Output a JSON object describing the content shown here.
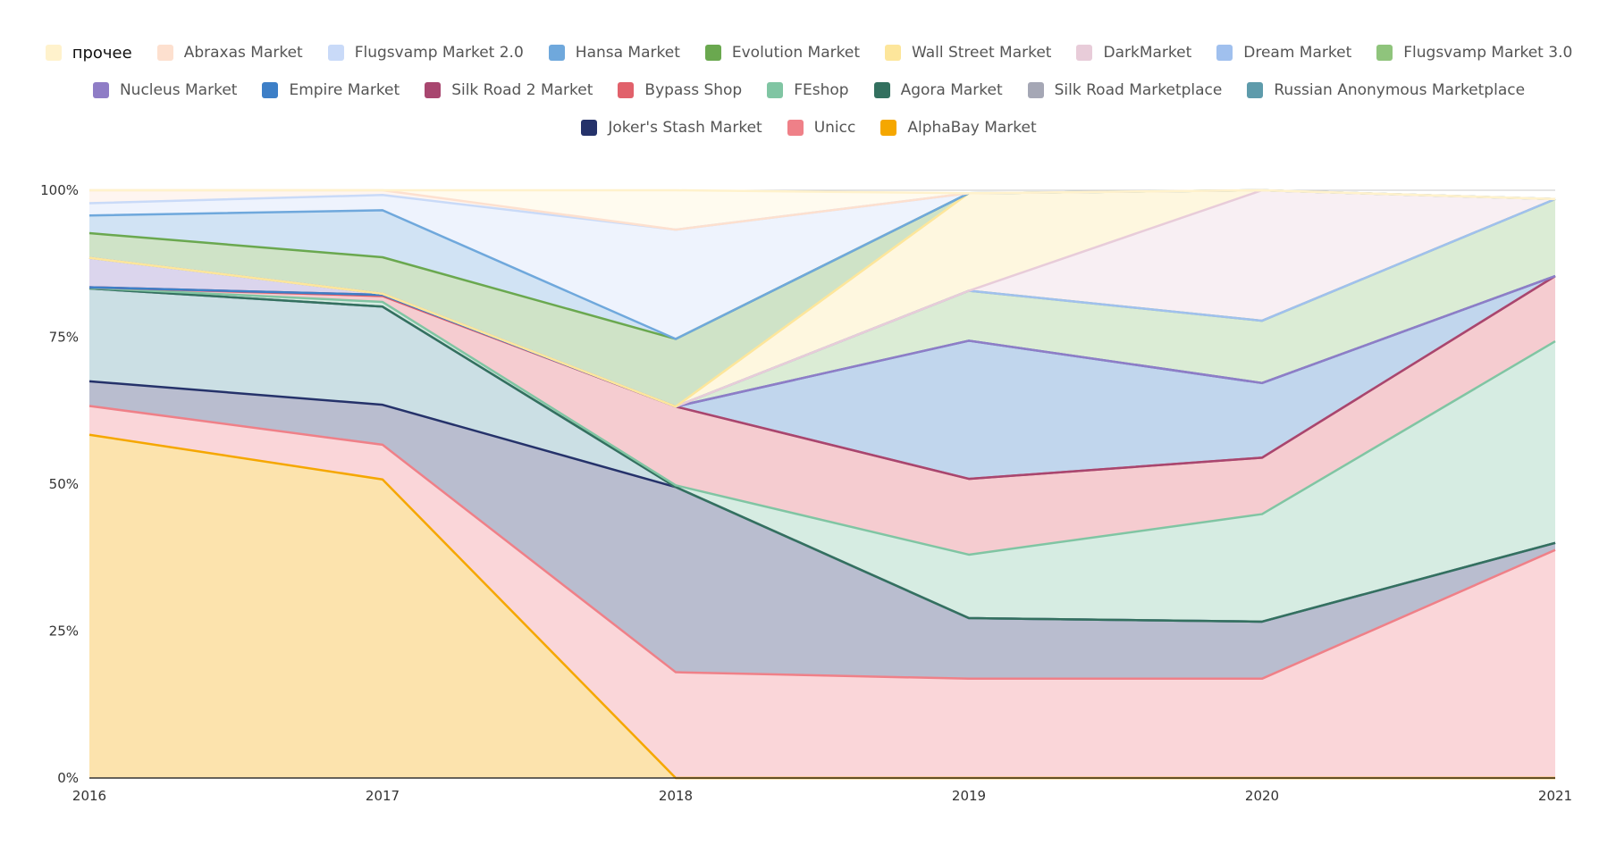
{
  "chart_data": {
    "type": "area",
    "stacked": true,
    "normalized": true,
    "x": [
      "2016",
      "2017",
      "2018",
      "2019",
      "2020",
      "2021"
    ],
    "y_tick_labels": [
      "0%",
      "25%",
      "50%",
      "75%",
      "100%"
    ],
    "ylim": [
      0,
      100
    ],
    "grid": true,
    "legend_position": "top",
    "series": [
      {
        "name": "AlphaBay Market",
        "color": "#f5a700",
        "values": [
          58.4,
          50.8,
          0,
          0,
          0,
          0
        ]
      },
      {
        "name": "Unicc",
        "color": "#ef8088",
        "values": [
          4.9,
          5.9,
          18.0,
          16.9,
          16.9,
          38.8
        ]
      },
      {
        "name": "Joker's Stash Market",
        "color": "#25326a",
        "values": [
          4.2,
          6.8,
          31.5,
          10.3,
          9.7,
          1.2
        ]
      },
      {
        "name": "Russian Anonymous Marketplace",
        "color": "#5e9bab",
        "values": [
          15.8,
          16.7,
          0,
          0,
          0,
          0
        ]
      },
      {
        "name": "Silk Road Marketplace",
        "color": "#a5a7b5",
        "values": [
          0,
          0,
          0,
          0,
          0,
          0
        ]
      },
      {
        "name": "Agora Market",
        "color": "#33705f",
        "values": [
          0,
          0,
          0,
          0,
          0,
          0
        ]
      },
      {
        "name": "FEshop",
        "color": "#80c5a3",
        "values": [
          0.1,
          0.8,
          0.3,
          10.8,
          18.3,
          34.3
        ]
      },
      {
        "name": "Bypass Shop",
        "color": "#e1616b",
        "values": [
          0.1,
          1.0,
          13.4,
          12.9,
          9.6,
          11.1
        ]
      },
      {
        "name": "Silk Road 2 Market",
        "color": "#a8466f",
        "values": [
          0,
          0.2,
          0,
          0,
          0,
          0
        ]
      },
      {
        "name": "Empire Market",
        "color": "#3d7fc7",
        "values": [
          0,
          0,
          0,
          23.5,
          12.7,
          0
        ]
      },
      {
        "name": "Nucleus Market",
        "color": "#8f7dc6",
        "values": [
          5.0,
          0.2,
          0,
          0,
          0,
          0
        ]
      },
      {
        "name": "Flugsvamp Market 3.0",
        "color": "#8fc47c",
        "values": [
          0,
          0,
          0,
          8.5,
          10.6,
          13.1
        ]
      },
      {
        "name": "Dream Market",
        "color": "#a0c0ee",
        "values": [
          0,
          0,
          0,
          0,
          0,
          0
        ]
      },
      {
        "name": "DarkMarket",
        "color": "#e8ccd9",
        "values": [
          0,
          0,
          0,
          0,
          22.2,
          0
        ]
      },
      {
        "name": "Wall Street Market",
        "color": "#fde69b",
        "values": [
          0,
          0,
          0,
          16.6,
          0,
          0
        ]
      },
      {
        "name": "Evolution Market",
        "color": "#6aa84f",
        "values": [
          4.2,
          6.2,
          11.5,
          0,
          0,
          0
        ]
      },
      {
        "name": "Hansa Market",
        "color": "#6fa8dc",
        "values": [
          3.0,
          8.0,
          0,
          0,
          0,
          0
        ]
      },
      {
        "name": "Flugsvamp Market 2.0",
        "color": "#c9daf8",
        "values": [
          2.1,
          2.6,
          18.6,
          0,
          0,
          0
        ]
      },
      {
        "name": "Abraxas Market",
        "color": "#fde0cf",
        "values": [
          2.2,
          0.8,
          0,
          0,
          0,
          0
        ]
      },
      {
        "name": "прочее",
        "color": "#fff2cc",
        "values": [
          0,
          0,
          6.7,
          0,
          0,
          0
        ]
      }
    ],
    "legend_order": [
      "прочее",
      "Abraxas Market",
      "Flugsvamp Market 2.0",
      "Hansa Market",
      "Evolution Market",
      "Wall Street Market",
      "DarkMarket",
      "Dream Market",
      "Flugsvamp Market 3.0",
      "Nucleus Market",
      "Empire Market",
      "Silk Road 2 Market",
      "Bypass Shop",
      "FEshop",
      "Agora Market",
      "Silk Road Marketplace",
      "Russian Anonymous Marketplace",
      "Joker's Stash Market",
      "Unicc",
      "AlphaBay Market"
    ]
  }
}
